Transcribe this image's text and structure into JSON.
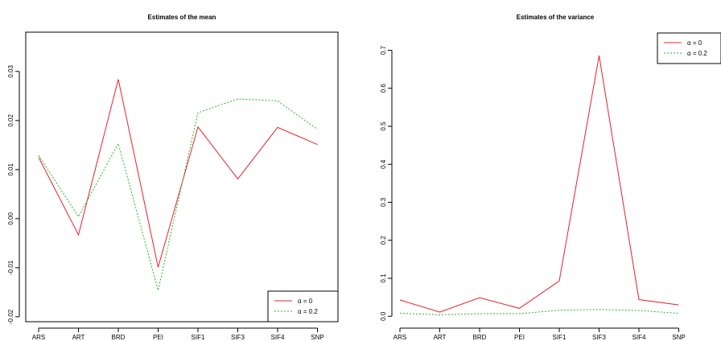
{
  "chart_data": [
    {
      "type": "line",
      "title": "Estimates of the mean",
      "xlabel": "",
      "ylabel": "",
      "categories": [
        "ARS",
        "ART",
        "BRD",
        "PEI",
        "SIF1",
        "SIF3",
        "SIF4",
        "SNP"
      ],
      "ylim": [
        -0.021,
        0.038
      ],
      "yticks": [
        "-0.02",
        "-0.01",
        "0.00",
        "0.01",
        "0.02",
        "0.03"
      ],
      "grid": false,
      "legend_position": "bottom-right",
      "series": [
        {
          "name": "α = 0",
          "color": "#e8202a",
          "dash": "solid",
          "values": [
            0.0125,
            -0.0033,
            0.0284,
            -0.0099,
            0.0187,
            0.0081,
            0.0186,
            0.0151
          ]
        },
        {
          "name": "α = 0.2",
          "color": "#22b922",
          "dash": "dotted",
          "values": [
            0.0129,
            0.0004,
            0.0153,
            -0.0146,
            0.0216,
            0.0244,
            0.024,
            0.0182
          ]
        }
      ]
    },
    {
      "type": "line",
      "title": "Estimates of the variance",
      "xlabel": "",
      "ylabel": "",
      "categories": [
        "ARS",
        "ART",
        "BRD",
        "PEI",
        "SIF1",
        "SIF3",
        "SIF4",
        "SNP"
      ],
      "ylim": [
        -0.01,
        0.735
      ],
      "yticks": [
        "0.0",
        "0.1",
        "0.2",
        "0.3",
        "0.4",
        "0.5",
        "0.6",
        "0.7"
      ],
      "grid": false,
      "legend_position": "top-right",
      "series": [
        {
          "name": "α = 0",
          "color": "#e8202a",
          "dash": "solid",
          "values": [
            0.043,
            0.011,
            0.049,
            0.021,
            0.093,
            0.686,
            0.044,
            0.03
          ]
        },
        {
          "name": "α = 0.2",
          "color": "#22b922",
          "dash": "dotted",
          "values": [
            0.008,
            0.004,
            0.007,
            0.007,
            0.016,
            0.018,
            0.015,
            0.008
          ]
        }
      ]
    }
  ]
}
